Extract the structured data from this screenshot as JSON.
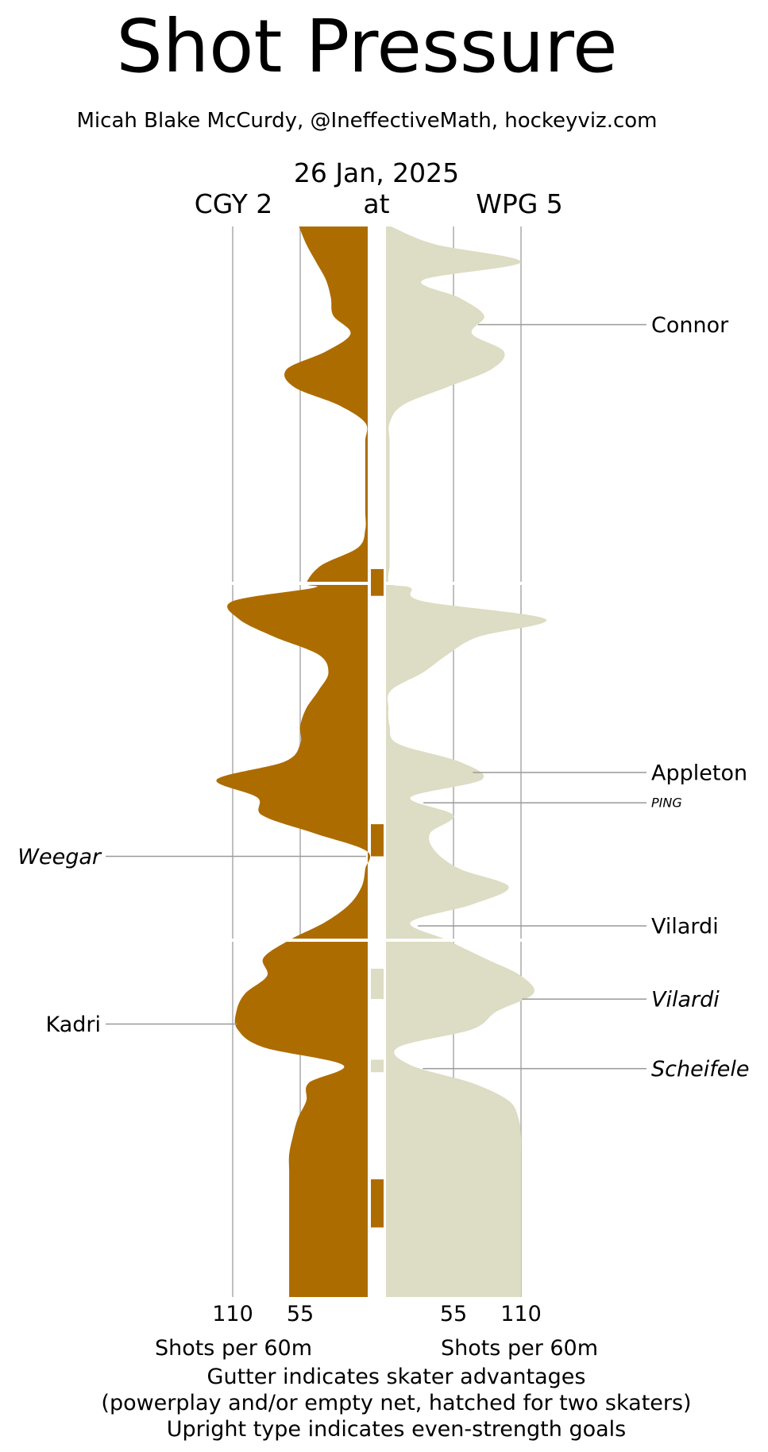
{
  "chart_data": {
    "type": "area",
    "title": "Shot Pressure",
    "subtitle": "Micah Blake McCurdy, @IneffectiveMath, hockeyviz.com",
    "date": "26 Jan, 2025",
    "away_label": "CGY 2",
    "at_label": "at",
    "home_label": "WPG 5",
    "xlabel_away": "Shots per 60m",
    "xlabel_home": "Shots per 60m",
    "away_ticks": [
      "110",
      "55"
    ],
    "home_ticks": [
      "55",
      "110"
    ],
    "tick_values": [
      55,
      110
    ],
    "xlim": [
      0,
      150
    ],
    "ylim_minutes": [
      0,
      60
    ],
    "periods": [
      [
        0,
        20
      ],
      [
        20,
        40
      ],
      [
        40,
        60
      ]
    ],
    "footnotes": [
      "Gutter indicates skater advantages",
      "(powerplay and/or empty net, hatched for two skaters)",
      "Upright type indicates even-strength goals"
    ],
    "colors": {
      "away": "#ad6c00",
      "home": "#dddcc4",
      "gridline": "#aaaaaa",
      "leader": "#999999"
    },
    "series": [
      {
        "name": "CGY",
        "minutes": [
          0,
          1,
          2,
          3,
          4,
          5,
          6,
          7,
          8,
          9,
          10,
          11,
          12,
          13,
          14,
          15,
          16,
          17,
          18,
          19,
          20,
          20.25,
          21,
          22,
          23,
          24,
          25,
          26,
          27,
          28,
          29,
          30,
          31,
          32,
          33,
          34,
          35,
          36,
          37,
          38,
          39,
          40,
          41,
          42,
          43,
          44,
          45,
          46,
          47,
          48,
          49,
          50,
          51,
          52,
          53,
          54,
          55,
          56,
          57,
          58,
          59,
          60
        ],
        "values": [
          56,
          50,
          42,
          34,
          30,
          28,
          14,
          34,
          66,
          60,
          24,
          2,
          2,
          2,
          2,
          2,
          2,
          2,
          8,
          38,
          50,
          44,
          110,
          105,
          76,
          40,
          32,
          40,
          50,
          55,
          55,
          68,
          123,
          90,
          86,
          44,
          1,
          2,
          5,
          15,
          35,
          64,
          85,
          82,
          100,
          107,
          106,
          85,
          20,
          48,
          50,
          57,
          61,
          64,
          64,
          64,
          64,
          64,
          64,
          64,
          64,
          64
        ]
      },
      {
        "name": "WPG",
        "minutes": [
          0,
          1,
          2,
          3,
          4,
          5,
          6,
          7,
          8,
          9,
          10,
          11,
          12,
          13,
          14,
          15,
          16,
          17,
          18,
          19,
          20,
          20.25,
          21,
          22,
          23,
          24,
          25,
          26,
          27,
          28,
          29,
          30,
          31,
          32,
          33,
          34,
          35,
          36,
          37,
          38,
          39,
          40,
          41,
          42,
          43,
          44,
          45,
          46,
          47,
          48,
          49,
          50,
          51,
          52,
          53,
          54,
          55,
          56,
          57,
          58,
          59,
          60
        ],
        "values": [
          4,
          40,
          110,
          30,
          60,
          80,
          70,
          96,
          86,
          50,
          14,
          3,
          3,
          3,
          3,
          3,
          3,
          3,
          3,
          3,
          3,
          20,
          30,
          130,
          75,
          50,
          30,
          4,
          2,
          3,
          10,
          60,
          78,
          20,
          55,
          36,
          40,
          60,
          100,
          70,
          20,
          50,
          80,
          110,
          120,
          90,
          70,
          10,
          20,
          70,
          100,
          108,
          110,
          110,
          110,
          110,
          110,
          110,
          110,
          110,
          110,
          110
        ]
      }
    ],
    "gutter_marks": [
      {
        "team": "CGY",
        "start_min": 19.2,
        "end_min": 20.7
      },
      {
        "team": "CGY",
        "start_min": 33.5,
        "end_min": 35.3
      },
      {
        "team": "WPG",
        "start_min": 41.6,
        "end_min": 43.3
      },
      {
        "team": "WPG",
        "start_min": 46.7,
        "end_min": 47.4
      },
      {
        "team": "CGY",
        "start_min": 53.4,
        "end_min": 56.1
      }
    ],
    "goals": [
      {
        "team": "WPG",
        "scorer": "Connor",
        "minute": 5.5,
        "even_strength": true
      },
      {
        "team": "WPG",
        "scorer": "Appleton",
        "minute": 30.6,
        "even_strength": true
      },
      {
        "team": "WPG",
        "scorer": "PING",
        "minute": 32.3,
        "even_strength": false,
        "small": true
      },
      {
        "team": "CGY",
        "scorer": "Weegar",
        "minute": 35.3,
        "even_strength": false
      },
      {
        "team": "WPG",
        "scorer": "Vilardi",
        "minute": 39.2,
        "even_strength": true
      },
      {
        "team": "WPG",
        "scorer": "Vilardi",
        "minute": 43.3,
        "even_strength": false
      },
      {
        "team": "CGY",
        "scorer": "Kadri",
        "minute": 44.7,
        "even_strength": true
      },
      {
        "team": "WPG",
        "scorer": "Scheifele",
        "minute": 47.2,
        "even_strength": false
      }
    ]
  }
}
